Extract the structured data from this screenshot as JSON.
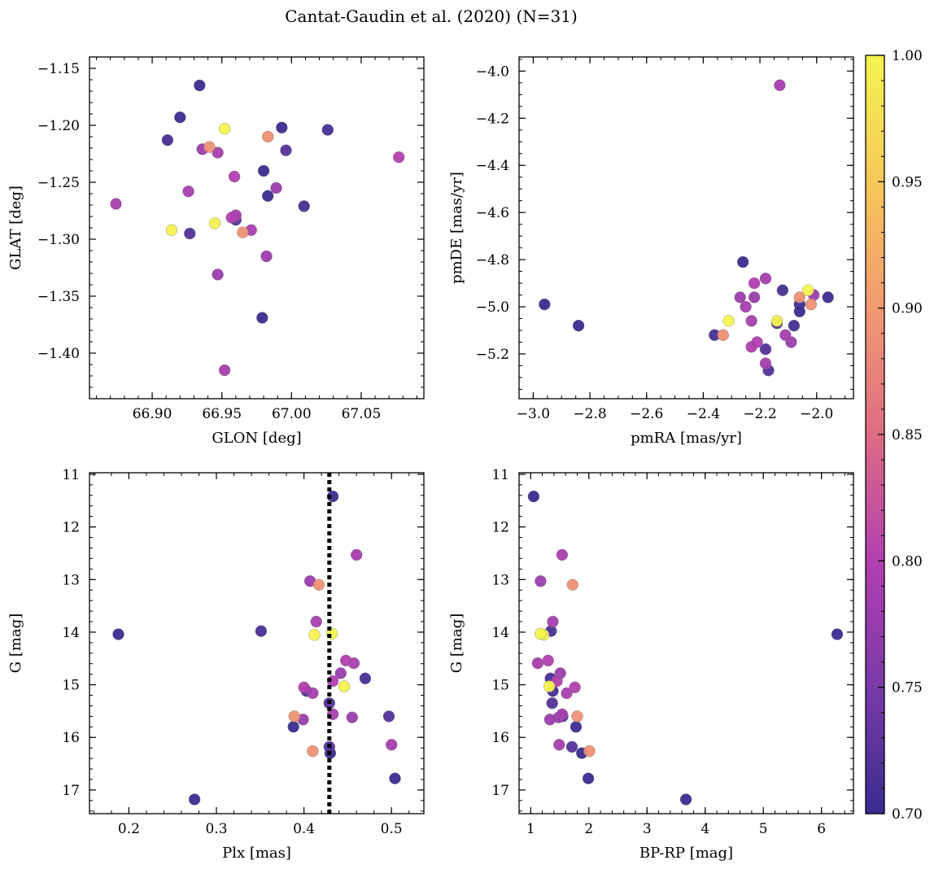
{
  "title": "Cantat-Gaudin et al. (2020) (N=31)",
  "colormap": {
    "name": "plasma-like",
    "range": [
      0.7,
      1.0
    ],
    "ticks": [
      "0.70",
      "0.75",
      "0.80",
      "0.85",
      "0.90",
      "0.95",
      "1.00"
    ],
    "stops": [
      "#3a2c8f",
      "#7a3aa8",
      "#b23fb0",
      "#de6c84",
      "#f19a70",
      "#f6c858",
      "#f5f34f"
    ]
  },
  "stars": [
    {
      "glon": 66.934,
      "glat": -1.165,
      "pmra": -2.96,
      "pmde": -4.99,
      "plx": 0.188,
      "g": 14.04,
      "bprp": 6.27,
      "prob": 0.7
    },
    {
      "glon": 66.92,
      "glat": -1.193,
      "pmra": -2.84,
      "pmde": -5.08,
      "plx": 0.275,
      "g": 17.18,
      "bprp": 3.67,
      "prob": 0.7
    },
    {
      "glon": 66.911,
      "glat": -1.213,
      "pmra": -2.36,
      "pmde": -5.12,
      "plx": 0.351,
      "g": 13.98,
      "bprp": 1.35,
      "prob": 0.71
    },
    {
      "glon": 66.993,
      "glat": -1.202,
      "pmra": -2.26,
      "pmde": -4.81,
      "plx": 0.388,
      "g": 15.8,
      "bprp": 1.78,
      "prob": 0.7
    },
    {
      "glon": 67.026,
      "glat": -1.204,
      "pmra": -2.12,
      "pmde": -4.93,
      "plx": 0.403,
      "g": 15.12,
      "bprp": 1.38,
      "prob": 0.71
    },
    {
      "glon": 66.996,
      "glat": -1.222,
      "pmra": -2.14,
      "pmde": -5.07,
      "plx": 0.429,
      "g": 16.18,
      "bprp": 1.71,
      "prob": 0.72
    },
    {
      "glon": 66.98,
      "glat": -1.24,
      "pmra": -2.06,
      "pmde": -4.99,
      "plx": 0.43,
      "g": 16.3,
      "bprp": 1.88,
      "prob": 0.7
    },
    {
      "glon": 66.983,
      "glat": -1.262,
      "pmra": -2.06,
      "pmde": -5.02,
      "plx": 0.433,
      "g": 11.42,
      "bprp": 1.05,
      "prob": 0.7
    },
    {
      "glon": 67.009,
      "glat": -1.271,
      "pmra": -2.08,
      "pmde": -5.08,
      "plx": 0.47,
      "g": 14.88,
      "bprp": 1.34,
      "prob": 0.71
    },
    {
      "glon": 66.96,
      "glat": -1.283,
      "pmra": -2.18,
      "pmde": -5.18,
      "plx": 0.497,
      "g": 15.6,
      "bprp": 1.55,
      "prob": 0.72
    },
    {
      "glon": 66.979,
      "glat": -1.369,
      "pmra": -1.96,
      "pmde": -4.96,
      "plx": 0.504,
      "g": 16.78,
      "bprp": 1.99,
      "prob": 0.7
    },
    {
      "glon": 66.874,
      "glat": -1.269,
      "pmra": -2.13,
      "pmde": -4.06,
      "plx": 0.46,
      "g": 12.53,
      "bprp": 1.54,
      "prob": 0.79
    },
    {
      "glon": 66.936,
      "glat": -1.221,
      "pmra": -2.27,
      "pmde": -4.96,
      "plx": 0.407,
      "g": 13.03,
      "bprp": 1.17,
      "prob": 0.78
    },
    {
      "glon": 66.947,
      "glat": -1.224,
      "pmra": -2.25,
      "pmde": -5.0,
      "plx": 0.414,
      "g": 13.8,
      "bprp": 1.38,
      "prob": 0.79
    },
    {
      "glon": 66.959,
      "glat": -1.245,
      "pmra": -2.22,
      "pmde": -4.9,
      "plx": 0.448,
      "g": 14.54,
      "bprp": 1.3,
      "prob": 0.8
    },
    {
      "glon": 66.926,
      "glat": -1.258,
      "pmra": -2.18,
      "pmde": -4.88,
      "plx": 0.457,
      "g": 14.59,
      "bprp": 1.12,
      "prob": 0.79
    },
    {
      "glon": 66.989,
      "glat": -1.255,
      "pmra": -2.22,
      "pmde": -4.96,
      "plx": 0.442,
      "g": 14.78,
      "bprp": 1.51,
      "prob": 0.78
    },
    {
      "glon": 67.077,
      "glat": -1.228,
      "pmra": -2.23,
      "pmde": -5.17,
      "plx": 0.433,
      "g": 14.93,
      "bprp": 1.45,
      "prob": 0.8
    },
    {
      "glon": 66.957,
      "glat": -1.281,
      "pmra": -2.21,
      "pmde": -5.15,
      "plx": 0.4,
      "g": 15.05,
      "bprp": 1.76,
      "prob": 0.8
    },
    {
      "glon": 66.96,
      "glat": -1.279,
      "pmra": -2.18,
      "pmde": -5.24,
      "plx": 0.41,
      "g": 15.16,
      "bprp": 1.62,
      "prob": 0.79
    },
    {
      "glon": 66.927,
      "glat": -1.295,
      "pmra": -2.17,
      "pmde": -5.27,
      "plx": 0.429,
      "g": 15.35,
      "bprp": 1.37,
      "prob": 0.72
    },
    {
      "glon": 66.971,
      "glat": -1.292,
      "pmra": -2.11,
      "pmde": -5.12,
      "plx": 0.433,
      "g": 15.56,
      "bprp": 1.54,
      "prob": 0.79
    },
    {
      "glon": 66.982,
      "glat": -1.315,
      "pmra": -2.09,
      "pmde": -5.15,
      "plx": 0.455,
      "g": 15.62,
      "bprp": 1.48,
      "prob": 0.78
    },
    {
      "glon": 66.947,
      "glat": -1.331,
      "pmra": -2.01,
      "pmde": -4.95,
      "plx": 0.399,
      "g": 15.66,
      "bprp": 1.33,
      "prob": 0.78
    },
    {
      "glon": 66.952,
      "glat": -1.415,
      "pmra": -2.23,
      "pmde": -5.06,
      "plx": 0.5,
      "g": 16.14,
      "bprp": 1.49,
      "prob": 0.79
    },
    {
      "glon": 66.941,
      "glat": -1.219,
      "pmra": -2.33,
      "pmde": -5.12,
      "plx": 0.417,
      "g": 13.1,
      "bprp": 1.72,
      "prob": 0.89
    },
    {
      "glon": 66.983,
      "glat": -1.21,
      "pmra": -2.06,
      "pmde": -4.96,
      "plx": 0.389,
      "g": 15.6,
      "bprp": 1.8,
      "prob": 0.89
    },
    {
      "glon": 66.965,
      "glat": -1.294,
      "pmra": -2.02,
      "pmde": -4.99,
      "plx": 0.41,
      "g": 16.26,
      "bprp": 2.01,
      "prob": 0.89
    },
    {
      "glon": 66.952,
      "glat": -1.203,
      "pmra": -2.31,
      "pmde": -5.06,
      "plx": 0.412,
      "g": 14.05,
      "bprp": 1.22,
      "prob": 1.0
    },
    {
      "glon": 66.914,
      "glat": -1.292,
      "pmra": -2.03,
      "pmde": -4.93,
      "plx": 0.432,
      "g": 14.03,
      "bprp": 1.17,
      "prob": 1.0
    },
    {
      "glon": 66.945,
      "glat": -1.286,
      "pmra": -2.14,
      "pmde": -5.06,
      "plx": 0.446,
      "g": 15.03,
      "bprp": 1.32,
      "prob": 1.0
    }
  ],
  "chart_data": [
    {
      "type": "scatter",
      "xfield": "glon",
      "yfield": "glat",
      "xlabel": "GLON [deg]",
      "ylabel": "GLAT [deg]",
      "xlim": [
        66.855,
        67.095
      ],
      "ylim": [
        -1.44,
        -1.14
      ],
      "yinvert": false,
      "xticks": [
        66.9,
        66.95,
        67.0,
        67.05
      ],
      "xticklabels": [
        "66.90",
        "66.95",
        "67.00",
        "67.05"
      ],
      "xminor": 0.01,
      "yticks": [
        -1.4,
        -1.35,
        -1.3,
        -1.25,
        -1.2,
        -1.15
      ],
      "yticklabels": [
        "−1.40",
        "−1.35",
        "−1.30",
        "−1.25",
        "−1.20",
        "−1.15"
      ],
      "yminor": 0.01
    },
    {
      "type": "scatter",
      "xfield": "pmra",
      "yfield": "pmde",
      "xlabel": "pmRA [mas/yr]",
      "ylabel": "pmDE [mas/yr]",
      "xlim": [
        -3.05,
        -1.87
      ],
      "ylim": [
        -5.39,
        -3.94
      ],
      "yinvert": false,
      "xticks": [
        -3.0,
        -2.8,
        -2.6,
        -2.4,
        -2.2,
        -2.0
      ],
      "xticklabels": [
        "−3.0",
        "−2.8",
        "−2.6",
        "−2.4",
        "−2.2",
        "−2.0"
      ],
      "xminor": 0.05,
      "yticks": [
        -5.2,
        -5.0,
        -4.8,
        -4.6,
        -4.4,
        -4.2,
        -4.0
      ],
      "yticklabels": [
        "−5.2",
        "−5.0",
        "−4.8",
        "−4.6",
        "−4.4",
        "−4.2",
        "−4.0"
      ],
      "yminor": 0.05
    },
    {
      "type": "scatter",
      "xfield": "plx",
      "yfield": "g",
      "xlabel": "Plx [mas]",
      "ylabel": "G [mag]",
      "xlim": [
        0.155,
        0.537
      ],
      "ylim": [
        10.97,
        17.45
      ],
      "yinvert": true,
      "xticks": [
        0.2,
        0.3,
        0.4,
        0.5
      ],
      "xticklabels": [
        "0.2",
        "0.3",
        "0.4",
        "0.5"
      ],
      "xminor": 0.02,
      "yticks": [
        11,
        12,
        13,
        14,
        15,
        16,
        17
      ],
      "yticklabels": [
        "11",
        "12",
        "13",
        "14",
        "15",
        "16",
        "17"
      ],
      "yminor": 0.2,
      "vline": {
        "x": 0.429,
        "style": "dotted"
      }
    },
    {
      "type": "scatter",
      "xfield": "bprp",
      "yfield": "g",
      "xlabel": "BP-RP [mag]",
      "ylabel": "G [mag]",
      "xlim": [
        0.8,
        6.55
      ],
      "ylim": [
        10.97,
        17.45
      ],
      "yinvert": true,
      "xticks": [
        1,
        2,
        3,
        4,
        5,
        6
      ],
      "xticklabels": [
        "1",
        "2",
        "3",
        "4",
        "5",
        "6"
      ],
      "xminor": 0.2,
      "yticks": [
        11,
        12,
        13,
        14,
        15,
        16,
        17
      ],
      "yticklabels": [
        "11",
        "12",
        "13",
        "14",
        "15",
        "16",
        "17"
      ],
      "yminor": 0.2
    }
  ]
}
